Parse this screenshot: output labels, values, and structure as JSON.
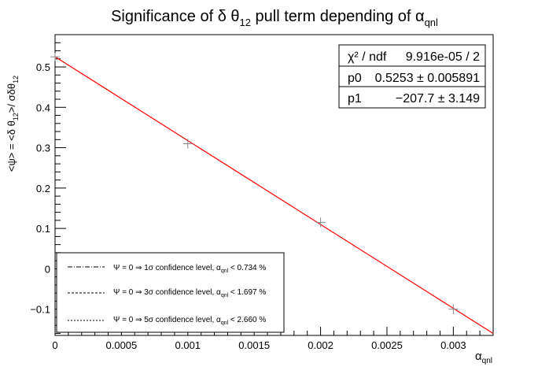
{
  "title": {
    "main": "Significance of δ θ",
    "sub1": "12",
    "mid": " pull term depending of α",
    "sub2": "qnl"
  },
  "ylabel": {
    "p1": "<ψ> = <δ θ",
    "s1": "12",
    "p2": ">/ σδθ",
    "s2": "12"
  },
  "xlabel": {
    "main": "α",
    "sub": "qnl"
  },
  "stats": {
    "rows": [
      {
        "label": "χ² / ndf",
        "value": "9.916e-05 / 2"
      },
      {
        "label": "p0",
        "value": "0.5253 ± 0.005891"
      },
      {
        "label": "p1",
        "value": "−207.7 ± 3.149"
      }
    ]
  },
  "legend": {
    "entries": [
      {
        "style": "dash-dot",
        "pre": "Ψ = 0 ⇒ 1σ confidence level, α",
        "sub": "qnl",
        "post": " < 0.734 %"
      },
      {
        "style": "dashed",
        "pre": "Ψ = 0 ⇒ 3σ confidence level, α",
        "sub": "qnl",
        "post": " < 1.697 %"
      },
      {
        "style": "dotted",
        "pre": "Ψ = 0 ⇒ 5σ confidence level, α",
        "sub": "qnl",
        "post": " < 2.660 %"
      }
    ]
  },
  "colors": {
    "fit_line": "#ff0000",
    "points": "#888888",
    "frame": "#000000"
  },
  "chart_data": {
    "type": "scatter",
    "xlim": [
      0,
      0.0033
    ],
    "ylim": [
      -0.165,
      0.58
    ],
    "xticks": [
      0,
      0.0005,
      0.001,
      0.0015,
      0.002,
      0.0025,
      0.003
    ],
    "xtick_labels": [
      "0",
      "0.0005",
      "0.001",
      "0.0015",
      "0.002",
      "0.0025",
      "0.003"
    ],
    "yticks": [
      -0.1,
      0,
      0.1,
      0.2,
      0.3,
      0.4,
      0.5
    ],
    "ytick_labels": [
      "−0.1",
      "0",
      "0.1",
      "0.2",
      "0.3",
      "0.4",
      "0.5"
    ],
    "points": [
      {
        "x": 0,
        "y": 0.525,
        "yerr": 0.01
      },
      {
        "x": 0.001,
        "y": 0.31,
        "yerr": 0.012
      },
      {
        "x": 0.002,
        "y": 0.115,
        "yerr": 0.012
      },
      {
        "x": 0.003,
        "y": -0.1,
        "yerr": 0.012
      }
    ],
    "fit": {
      "p0": 0.5253,
      "p1": -207.7
    },
    "grid": false,
    "legend_position": "bottom-left",
    "stats_position": "top-right"
  }
}
